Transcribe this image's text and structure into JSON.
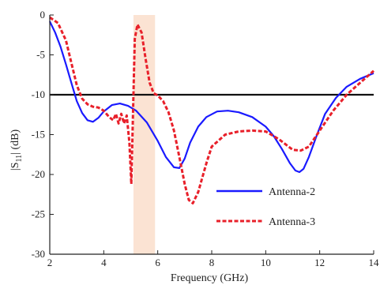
{
  "chart_data": {
    "type": "line",
    "title": "",
    "xlabel": "Frequency  (GHz)",
    "ylabel": "|S11| (dB)",
    "ylabel_main": "|S",
    "ylabel_sub": "11",
    "ylabel_tail": "| (dB)",
    "xlim": [
      2,
      14
    ],
    "ylim": [
      -30,
      0
    ],
    "xticks": [
      2,
      4,
      6,
      8,
      10,
      12,
      14
    ],
    "yticks": [
      0,
      -5,
      -10,
      -15,
      -20,
      -25,
      -30
    ],
    "grid": false,
    "legend_position": "lower-right",
    "reference_line": {
      "y": -10,
      "color": "#111111"
    },
    "highlight_band": {
      "x_start": 5.1,
      "x_end": 5.9,
      "color": "#fbe3d3"
    },
    "series": [
      {
        "name": "Antenna-2",
        "color": "#1a1aff",
        "dash": "solid",
        "x": [
          2.0,
          2.2,
          2.4,
          2.6,
          2.8,
          3.0,
          3.2,
          3.4,
          3.6,
          3.8,
          4.0,
          4.3,
          4.6,
          4.9,
          5.2,
          5.6,
          6.0,
          6.3,
          6.6,
          6.8,
          7.0,
          7.2,
          7.5,
          7.8,
          8.2,
          8.6,
          9.0,
          9.5,
          10.0,
          10.3,
          10.6,
          10.9,
          11.1,
          11.25,
          11.4,
          11.6,
          11.9,
          12.2,
          12.6,
          13.0,
          13.5,
          14.0
        ],
        "y": [
          -0.8,
          -2.2,
          -4.0,
          -6.2,
          -8.5,
          -10.8,
          -12.3,
          -13.2,
          -13.4,
          -12.9,
          -12.1,
          -11.3,
          -11.1,
          -11.4,
          -12.0,
          -13.5,
          -15.8,
          -17.8,
          -19.1,
          -19.2,
          -18.0,
          -16.0,
          -14.0,
          -12.8,
          -12.1,
          -12.0,
          -12.2,
          -12.8,
          -14.0,
          -15.2,
          -16.8,
          -18.6,
          -19.5,
          -19.7,
          -19.3,
          -17.8,
          -15.0,
          -12.4,
          -10.4,
          -9.0,
          -8.0,
          -7.3
        ]
      },
      {
        "name": "Antenna-3",
        "color": "#e8202a",
        "dash": "dashed",
        "x": [
          2.0,
          2.3,
          2.6,
          2.8,
          3.0,
          3.2,
          3.4,
          3.6,
          3.8,
          4.0,
          4.2,
          4.35,
          4.45,
          4.55,
          4.65,
          4.75,
          4.85,
          4.95,
          5.02,
          5.08,
          5.15,
          5.25,
          5.4,
          5.55,
          5.7,
          5.85,
          6.0,
          6.2,
          6.4,
          6.6,
          6.8,
          7.0,
          7.15,
          7.3,
          7.5,
          7.8,
          8.0,
          8.5,
          9.0,
          9.5,
          10.0,
          10.5,
          11.0,
          11.3,
          11.6,
          12.0,
          12.5,
          13.0,
          13.5,
          14.0
        ],
        "y": [
          -0.3,
          -1.0,
          -3.2,
          -6.0,
          -8.8,
          -10.5,
          -11.2,
          -11.5,
          -11.6,
          -12.0,
          -12.8,
          -13.2,
          -12.4,
          -13.6,
          -12.4,
          -13.6,
          -12.6,
          -16.0,
          -21.2,
          -13.0,
          -3.0,
          -1.2,
          -2.2,
          -5.5,
          -8.5,
          -9.8,
          -10.1,
          -10.8,
          -12.2,
          -14.5,
          -17.8,
          -21.2,
          -23.2,
          -23.6,
          -22.2,
          -18.6,
          -16.5,
          -15.0,
          -14.6,
          -14.5,
          -14.6,
          -15.6,
          -16.9,
          -17.0,
          -16.5,
          -14.5,
          -12.0,
          -10.0,
          -8.5,
          -7.0
        ]
      }
    ]
  }
}
